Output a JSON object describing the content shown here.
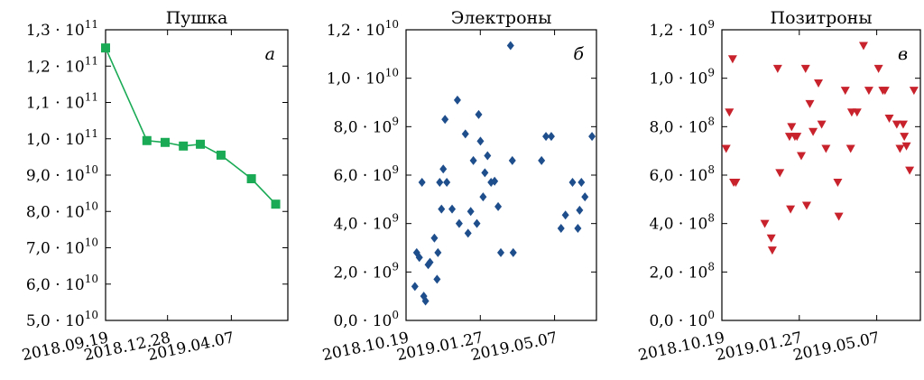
{
  "chart_data": [
    {
      "type": "line",
      "title": "Пушка",
      "panel_label": "а",
      "color": "#1aaa55",
      "marker": "square",
      "x_ticks": [
        "2018.09.19",
        "2018.12.28",
        "2019.04.07"
      ],
      "y_ticks": [
        "5,0 · 10",
        "6,0 · 10",
        "7,0 · 10",
        "8,0 · 10",
        "9,0 · 10",
        "1,0 · 10",
        "1,1 · 10",
        "1,2 · 10",
        "1,3 · 10"
      ],
      "y_tick_exponents": [
        "10",
        "10",
        "10",
        "10",
        "10",
        "11",
        "11",
        "11",
        "11"
      ],
      "ylim": [
        50000000000.0,
        130000000000.0
      ],
      "xlim_days": [
        0,
        100
      ],
      "x_tick_days": [
        0,
        100,
        200
      ],
      "points": [
        {
          "x": 0,
          "y": 125000000000.0
        },
        {
          "x": 68,
          "y": 99500000000.0
        },
        {
          "x": 98,
          "y": 99000000000.0
        },
        {
          "x": 128,
          "y": 98000000000.0
        },
        {
          "x": 156,
          "y": 98500000000.0
        },
        {
          "x": 190,
          "y": 95500000000.0
        },
        {
          "x": 240,
          "y": 89000000000.0
        },
        {
          "x": 280,
          "y": 82000000000.0
        }
      ]
    },
    {
      "type": "scatter",
      "title": "Электроны",
      "panel_label": "б",
      "color": "#1f4e8c",
      "marker": "diamond",
      "x_ticks": [
        "2018.10.19",
        "2019.01.27",
        "2019.05.07"
      ],
      "y_ticks": [
        "0,0 · 10",
        "2,0 · 10",
        "4,0 · 10",
        "6,0 · 10",
        "8,0 · 10",
        "1,0 · 10",
        "1,2 · 10"
      ],
      "y_tick_exponents": [
        "0",
        "9",
        "9",
        "9",
        "9",
        "10",
        "10"
      ],
      "ylim": [
        0,
        12000000000.0
      ],
      "x_tick_days": [
        0,
        100,
        200
      ],
      "points": [
        {
          "x": 10,
          "y": 1400000000.0
        },
        {
          "x": 12,
          "y": 2800000000.0
        },
        {
          "x": 15,
          "y": 2600000000.0
        },
        {
          "x": 18,
          "y": 5700000000.0
        },
        {
          "x": 20,
          "y": 1000000000.0
        },
        {
          "x": 22,
          "y": 800000000.0
        },
        {
          "x": 25,
          "y": 2300000000.0
        },
        {
          "x": 27,
          "y": 2400000000.0
        },
        {
          "x": 32,
          "y": 3400000000.0
        },
        {
          "x": 35,
          "y": 1700000000.0
        },
        {
          "x": 36,
          "y": 2800000000.0
        },
        {
          "x": 38,
          "y": 5700000000.0
        },
        {
          "x": 40,
          "y": 4600000000.0
        },
        {
          "x": 42,
          "y": 6250000000.0
        },
        {
          "x": 44,
          "y": 8300000000.0
        },
        {
          "x": 46,
          "y": 5700000000.0
        },
        {
          "x": 52,
          "y": 4600000000.0
        },
        {
          "x": 58,
          "y": 9100000000.0
        },
        {
          "x": 60,
          "y": 4000000000.0
        },
        {
          "x": 67,
          "y": 7700000000.0
        },
        {
          "x": 70,
          "y": 3600000000.0
        },
        {
          "x": 73,
          "y": 4500000000.0
        },
        {
          "x": 76,
          "y": 6600000000.0
        },
        {
          "x": 80,
          "y": 4000000000.0
        },
        {
          "x": 82,
          "y": 8500000000.0
        },
        {
          "x": 84,
          "y": 7400000000.0
        },
        {
          "x": 87,
          "y": 5100000000.0
        },
        {
          "x": 89,
          "y": 6100000000.0
        },
        {
          "x": 92,
          "y": 6800000000.0
        },
        {
          "x": 96,
          "y": 5700000000.0
        },
        {
          "x": 100,
          "y": 5750000000.0
        },
        {
          "x": 104,
          "y": 4700000000.0
        },
        {
          "x": 107,
          "y": 2800000000.0
        },
        {
          "x": 118,
          "y": 11350000000.0
        },
        {
          "x": 120,
          "y": 6600000000.0
        },
        {
          "x": 121,
          "y": 2800000000.0
        },
        {
          "x": 153,
          "y": 6600000000.0
        },
        {
          "x": 158,
          "y": 7600000000.0
        },
        {
          "x": 164,
          "y": 7600000000.0
        },
        {
          "x": 175,
          "y": 3800000000.0
        },
        {
          "x": 180,
          "y": 4350000000.0
        },
        {
          "x": 188,
          "y": 5700000000.0
        },
        {
          "x": 194,
          "y": 3800000000.0
        },
        {
          "x": 196,
          "y": 4550000000.0
        },
        {
          "x": 198,
          "y": 5700000000.0
        },
        {
          "x": 202,
          "y": 5100000000.0
        },
        {
          "x": 210,
          "y": 7600000000.0
        }
      ]
    },
    {
      "type": "scatter",
      "title": "Позитроны",
      "panel_label": "в",
      "color": "#c8232c",
      "marker": "triangle-down",
      "x_ticks": [
        "2018.10.19",
        "2019.01.27",
        "2019.05.07"
      ],
      "y_ticks": [
        "0,0 · 10",
        "2,0 · 10",
        "4,0 · 10",
        "6,0 · 10",
        "8,0 · 10",
        "1,0 · 10",
        "1,2 · 10"
      ],
      "y_tick_exponents": [
        "0",
        "8",
        "8",
        "8",
        "8",
        "9",
        "9"
      ],
      "ylim": [
        0,
        1200000000.0
      ],
      "x_tick_days": [
        0,
        100,
        200
      ],
      "points": [
        {
          "x": 4,
          "y": 710000000.0
        },
        {
          "x": 7,
          "y": 860000000.0
        },
        {
          "x": 10,
          "y": 1080000000.0
        },
        {
          "x": 11,
          "y": 570000000.0
        },
        {
          "x": 13,
          "y": 570000000.0
        },
        {
          "x": 40,
          "y": 400000000.0
        },
        {
          "x": 46,
          "y": 340000000.0
        },
        {
          "x": 47,
          "y": 290000000.0
        },
        {
          "x": 52,
          "y": 1040000000.0
        },
        {
          "x": 54,
          "y": 610000000.0
        },
        {
          "x": 63,
          "y": 760000000.0
        },
        {
          "x": 64,
          "y": 460000000.0
        },
        {
          "x": 65,
          "y": 800000000.0
        },
        {
          "x": 68,
          "y": 760000000.0
        },
        {
          "x": 70,
          "y": 760000000.0
        },
        {
          "x": 74,
          "y": 680000000.0
        },
        {
          "x": 78,
          "y": 1040000000.0
        },
        {
          "x": 79,
          "y": 475000000.0
        },
        {
          "x": 82,
          "y": 895000000.0
        },
        {
          "x": 85,
          "y": 780000000.0
        },
        {
          "x": 90,
          "y": 980000000.0
        },
        {
          "x": 93,
          "y": 810000000.0
        },
        {
          "x": 97,
          "y": 710000000.0
        },
        {
          "x": 108,
          "y": 570000000.0
        },
        {
          "x": 109,
          "y": 430000000.0
        },
        {
          "x": 115,
          "y": 950000000.0
        },
        {
          "x": 120,
          "y": 710000000.0
        },
        {
          "x": 121,
          "y": 860000000.0
        },
        {
          "x": 126,
          "y": 860000000.0
        },
        {
          "x": 132,
          "y": 1135000000.0
        },
        {
          "x": 137,
          "y": 950000000.0
        },
        {
          "x": 146,
          "y": 1040000000.0
        },
        {
          "x": 150,
          "y": 950000000.0
        },
        {
          "x": 152,
          "y": 950000000.0
        },
        {
          "x": 156,
          "y": 835000000.0
        },
        {
          "x": 163,
          "y": 810000000.0
        },
        {
          "x": 166,
          "y": 710000000.0
        },
        {
          "x": 169,
          "y": 810000000.0
        },
        {
          "x": 170,
          "y": 760000000.0
        },
        {
          "x": 172,
          "y": 720000000.0
        },
        {
          "x": 175,
          "y": 620000000.0
        },
        {
          "x": 179,
          "y": 950000000.0
        }
      ]
    }
  ]
}
